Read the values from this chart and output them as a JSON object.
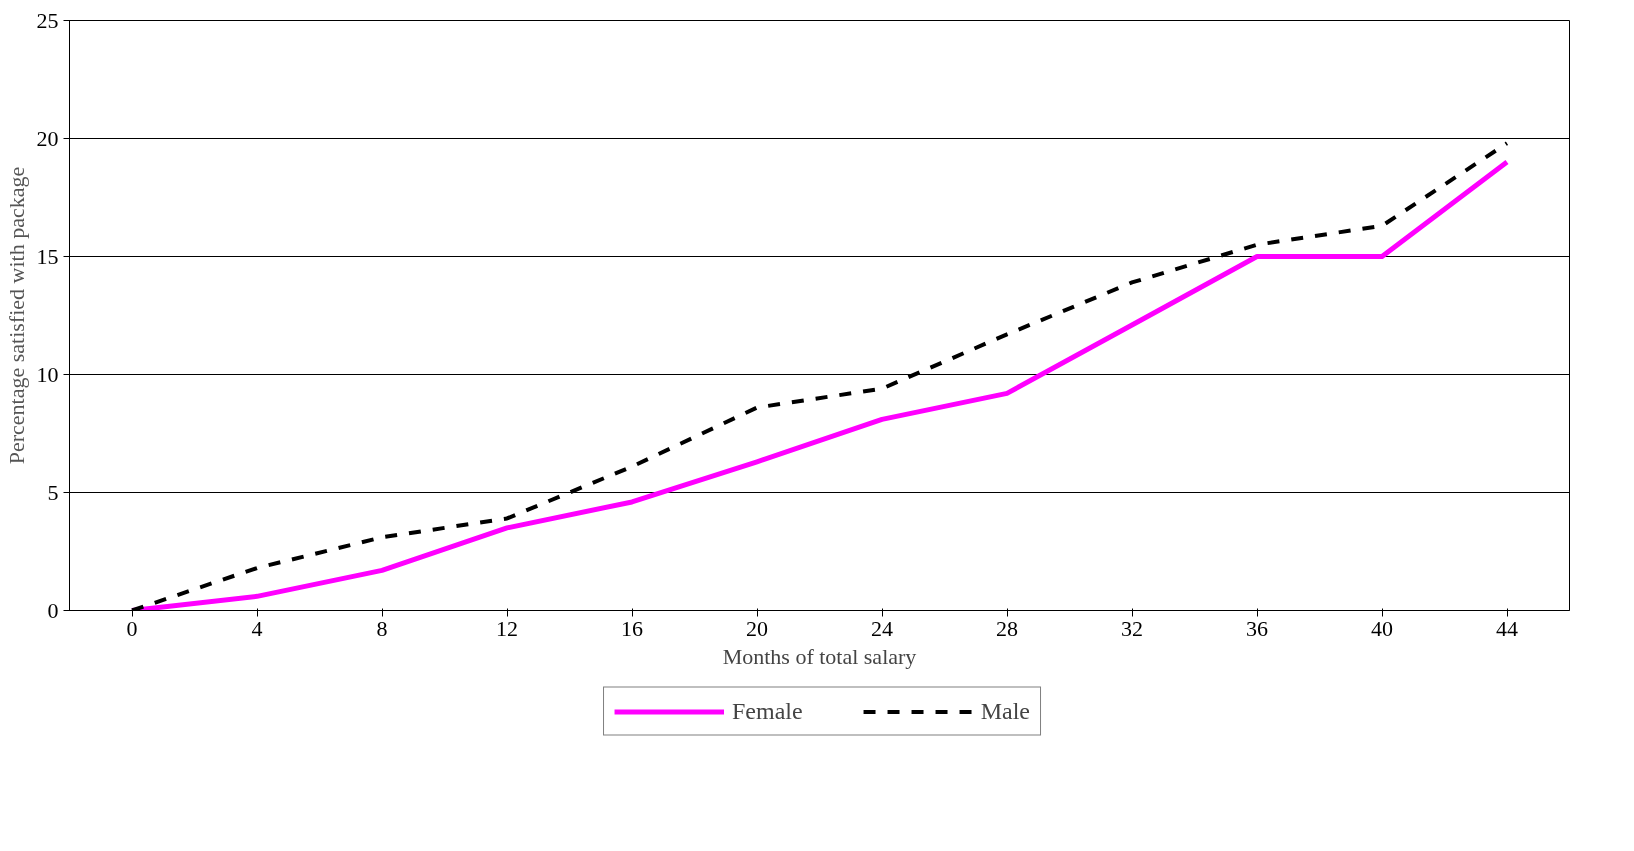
{
  "chart_data": {
    "type": "line",
    "xlabel": "Months of total salary",
    "ylabel": "Percentage satisfied with package",
    "categories": [
      "0",
      "4",
      "8",
      "12",
      "16",
      "20",
      "24",
      "28",
      "32",
      "36",
      "40",
      "44"
    ],
    "series": [
      {
        "name": "Female",
        "color": "#ff00ff",
        "line_style": "solid",
        "values": [
          0,
          0.6,
          1.7,
          3.5,
          4.6,
          6.3,
          8.1,
          9.2,
          12.1,
          15.0,
          15.0,
          19.0
        ]
      },
      {
        "name": "Male",
        "color": "#000000",
        "line_style": "dashed",
        "values": [
          0,
          1.8,
          3.1,
          3.9,
          6.1,
          8.6,
          9.4,
          11.7,
          13.9,
          15.5,
          16.3,
          19.8
        ]
      }
    ],
    "ylim": [
      0,
      25
    ],
    "yticks": [
      0,
      5,
      10,
      15,
      20,
      25
    ],
    "grid": "y",
    "legend": "bottom",
    "marker": "none"
  }
}
